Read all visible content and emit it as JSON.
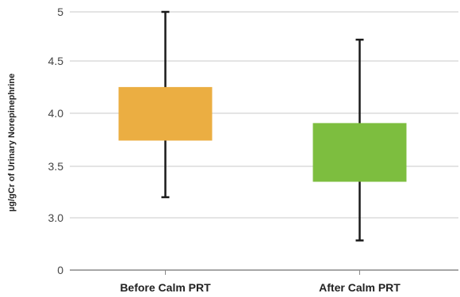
{
  "chart_data": {
    "type": "box",
    "ylabel": "µg/gCr of Urinary Norepinephrine",
    "xlabel": "",
    "title": "",
    "y_tick_labels": [
      "0",
      "3.0",
      "3.5",
      "4.0",
      "4.5",
      "5"
    ],
    "grid": true,
    "categories": [
      "Before Calm PRT",
      "After Calm PRT"
    ],
    "boxes": [
      {
        "category": "Before Calm PRT",
        "whisker_low": 3.2,
        "q1": 3.75,
        "q3": 4.27,
        "whisker_high": 5.0,
        "color": "#EBAE42"
      },
      {
        "category": "After Calm PRT",
        "whisker_low": 2.78,
        "q1": 3.35,
        "q3": 3.92,
        "whisker_high": 4.73,
        "color": "#7DBE3F"
      }
    ]
  }
}
